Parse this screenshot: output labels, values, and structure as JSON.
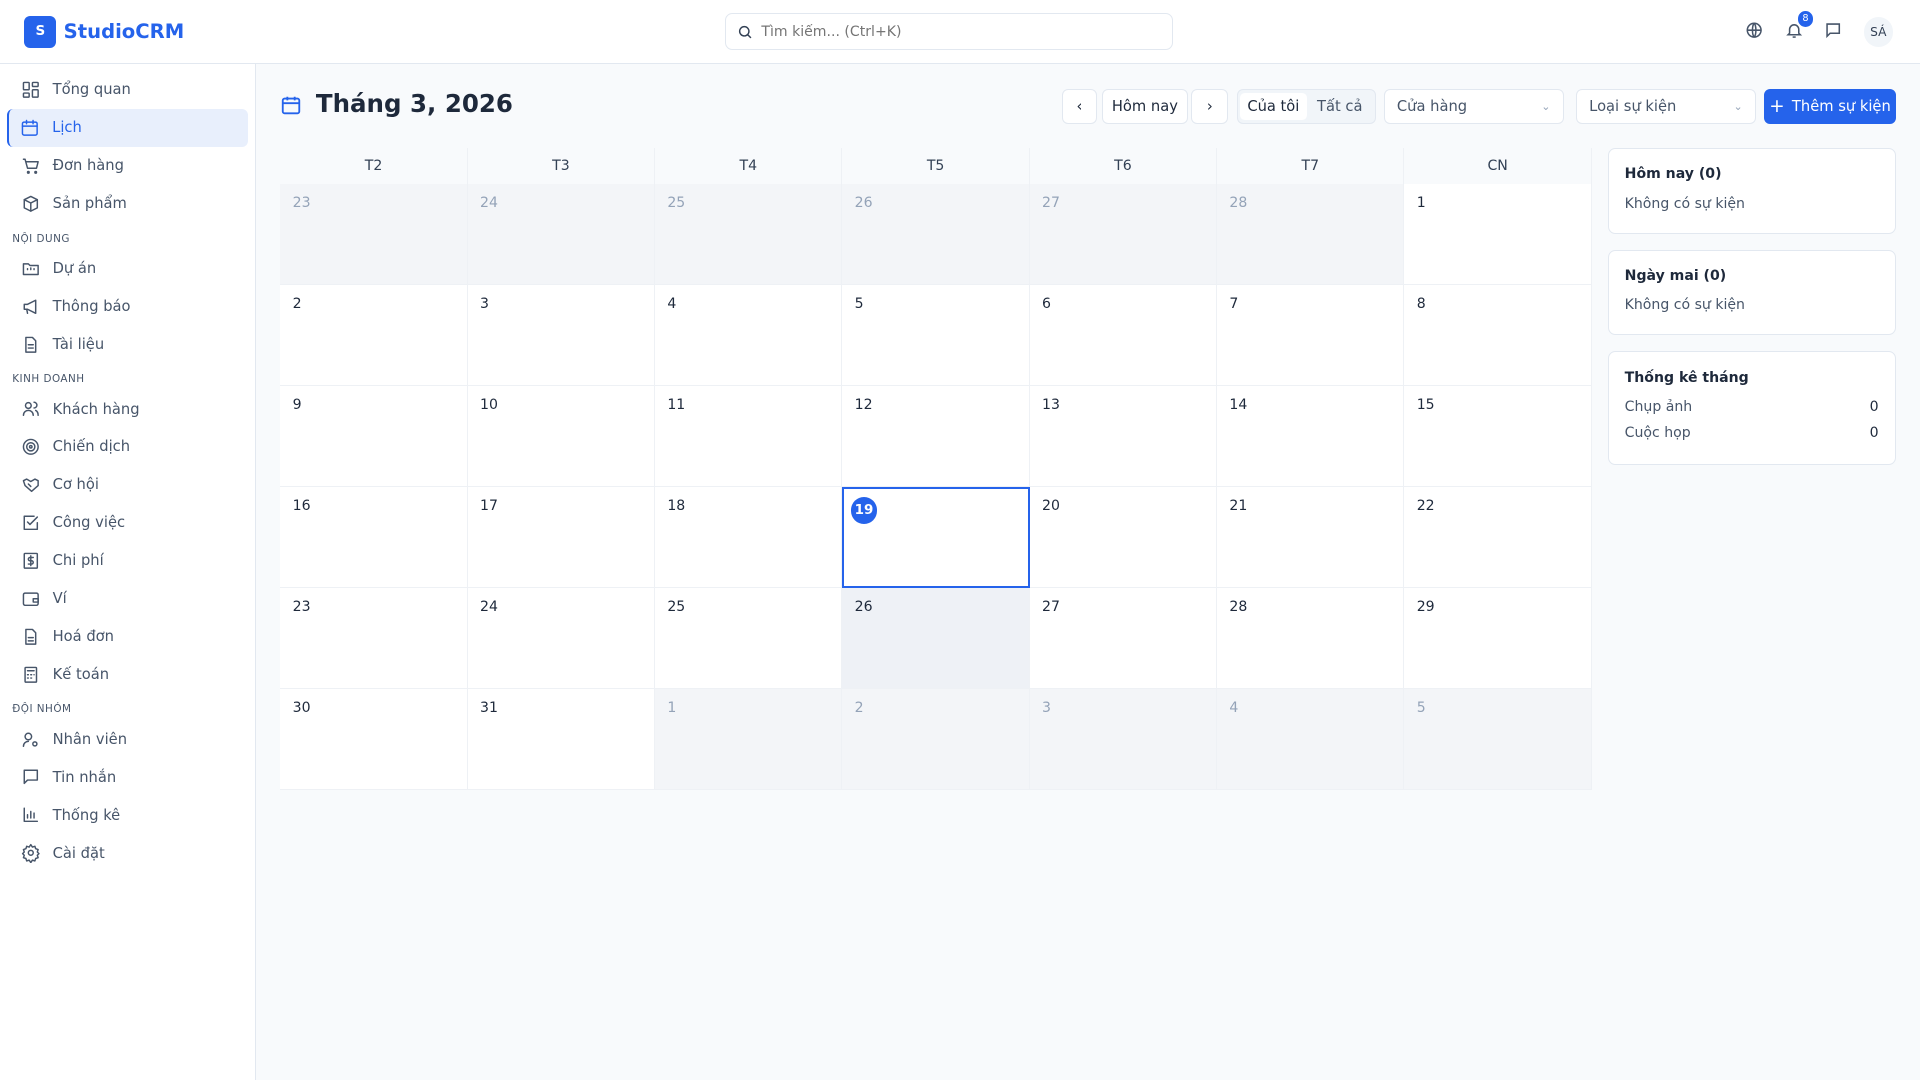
{
  "app": {
    "logo_letter": "S",
    "name": "StudioCRM"
  },
  "search": {
    "placeholder": "Tìm kiếm... (Ctrl+K)"
  },
  "header": {
    "notification_count": "8",
    "avatar": "SÁ"
  },
  "sidebar": {
    "top": [
      {
        "label": "Tổng quan",
        "icon": "dashboard-icon"
      },
      {
        "label": "Lịch",
        "icon": "calendar-icon",
        "active": true
      },
      {
        "label": "Đơn hàng",
        "icon": "cart-icon"
      },
      {
        "label": "Sản phẩm",
        "icon": "box-icon"
      }
    ],
    "sections": [
      {
        "title": "NỘI DUNG",
        "items": [
          {
            "label": "Dự án",
            "icon": "folder-icon"
          },
          {
            "label": "Thông báo",
            "icon": "megaphone-icon"
          },
          {
            "label": "Tài liệu",
            "icon": "document-icon"
          }
        ]
      },
      {
        "title": "KINH DOANH",
        "items": [
          {
            "label": "Khách hàng",
            "icon": "users-icon"
          },
          {
            "label": "Chiến dịch",
            "icon": "target-icon"
          },
          {
            "label": "Cơ hội",
            "icon": "handshake-icon"
          },
          {
            "label": "Công việc",
            "icon": "checkbox-icon"
          },
          {
            "label": "Chi phí",
            "icon": "dollar-icon"
          },
          {
            "label": "Ví",
            "icon": "wallet-icon"
          },
          {
            "label": "Hoá đơn",
            "icon": "invoice-icon"
          },
          {
            "label": "Kế toán",
            "icon": "calculator-icon"
          }
        ]
      },
      {
        "title": "ĐỘI NHÓM",
        "items": [
          {
            "label": "Nhân viên",
            "icon": "user-gear-icon"
          },
          {
            "label": "Tin nhắn",
            "icon": "message-icon"
          },
          {
            "label": "Thống kê",
            "icon": "chart-icon"
          },
          {
            "label": "Cài đặt",
            "icon": "settings-icon"
          }
        ]
      }
    ]
  },
  "toolbar": {
    "title": "Tháng 3, 2026",
    "today": "Hôm nay",
    "mine": "Của tôi",
    "all": "Tất cả",
    "store_select": "Cửa hàng",
    "type_select": "Loại sự kiện",
    "add": "Thêm sự kiện"
  },
  "calendar": {
    "weekdays": [
      "T2",
      "T3",
      "T4",
      "T5",
      "T6",
      "T7",
      "CN"
    ],
    "days": [
      {
        "d": "23",
        "other": true
      },
      {
        "d": "24",
        "other": true
      },
      {
        "d": "25",
        "other": true
      },
      {
        "d": "26",
        "other": true
      },
      {
        "d": "27",
        "other": true
      },
      {
        "d": "28",
        "other": true
      },
      {
        "d": "1"
      },
      {
        "d": "2"
      },
      {
        "d": "3"
      },
      {
        "d": "4"
      },
      {
        "d": "5"
      },
      {
        "d": "6"
      },
      {
        "d": "7"
      },
      {
        "d": "8"
      },
      {
        "d": "9"
      },
      {
        "d": "10"
      },
      {
        "d": "11"
      },
      {
        "d": "12"
      },
      {
        "d": "13"
      },
      {
        "d": "14"
      },
      {
        "d": "15"
      },
      {
        "d": "16"
      },
      {
        "d": "17"
      },
      {
        "d": "18"
      },
      {
        "d": "19",
        "today": true
      },
      {
        "d": "20"
      },
      {
        "d": "21"
      },
      {
        "d": "22"
      },
      {
        "d": "23"
      },
      {
        "d": "24"
      },
      {
        "d": "25"
      },
      {
        "d": "26",
        "hover": true
      },
      {
        "d": "27"
      },
      {
        "d": "28"
      },
      {
        "d": "29"
      },
      {
        "d": "30"
      },
      {
        "d": "31"
      },
      {
        "d": "1",
        "other": true
      },
      {
        "d": "2",
        "other": true
      },
      {
        "d": "3",
        "other": true
      },
      {
        "d": "4",
        "other": true
      },
      {
        "d": "5",
        "other": true
      }
    ]
  },
  "panel": {
    "today": {
      "title": "Hôm nay (0)",
      "empty": "Không có sự kiện"
    },
    "tomorrow": {
      "title": "Ngày mai (0)",
      "empty": "Không có sự kiện"
    },
    "stats": {
      "title": "Thống kê tháng",
      "rows": [
        {
          "label": "Chụp ảnh",
          "value": "0"
        },
        {
          "label": "Cuộc họp",
          "value": "0"
        }
      ]
    }
  }
}
